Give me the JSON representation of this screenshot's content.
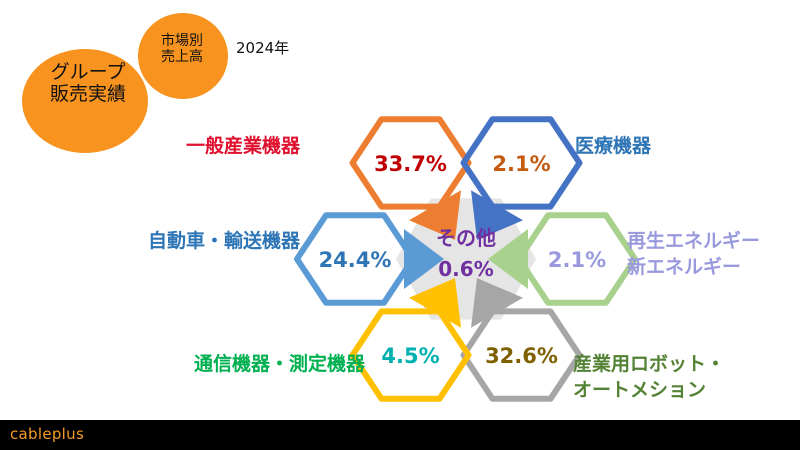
{
  "header": {
    "badge_main_line1": "グループ",
    "badge_main_line2": "販売実績",
    "badge_sub_line1": "市場別",
    "badge_sub_line2": "売上高",
    "year": "2024年"
  },
  "footer": {
    "logo": "cableplus"
  },
  "colors": {
    "accent": "#f7931e",
    "center_bg": "#e5e5e5",
    "center_text": "#7030a0"
  },
  "chart_data": {
    "type": "pie",
    "title": "",
    "unit": "%",
    "center": {
      "label": "その他",
      "value": "0.6%",
      "numeric": 0.6
    },
    "segments": [
      {
        "label_lines": [
          "一般産業機器"
        ],
        "value": 33.7,
        "display": "33.7%",
        "color": "#ed7d31",
        "label_color": "#e0102f",
        "value_color": "#c00000"
      },
      {
        "label_lines": [
          "医療機器"
        ],
        "value": 2.1,
        "display": "2.1%",
        "color": "#4472c4",
        "label_color": "#2e75b6",
        "value_color": "#c55a11"
      },
      {
        "label_lines": [
          "再生エネルギー",
          "新エネルギー"
        ],
        "value": 2.1,
        "display": "2.1%",
        "color": "#a9d18e",
        "label_color": "#9999dd",
        "value_color": "#9999dd"
      },
      {
        "label_lines": [
          "産業用ロボット・",
          "オートメション"
        ],
        "value": 32.6,
        "display": "32.6%",
        "color": "#a6a6a6",
        "label_color": "#548235",
        "value_color": "#7f6000"
      },
      {
        "label_lines": [
          "通信機器・測定機器"
        ],
        "value": 4.5,
        "display": "4.5%",
        "color": "#ffc000",
        "label_color": "#00b050",
        "value_color": "#00b0b0"
      },
      {
        "label_lines": [
          "自動車・輸送機器"
        ],
        "value": 24.4,
        "display": "24.4%",
        "color": "#5b9bd5",
        "label_color": "#2e75b6",
        "value_color": "#2e75b6"
      }
    ]
  }
}
